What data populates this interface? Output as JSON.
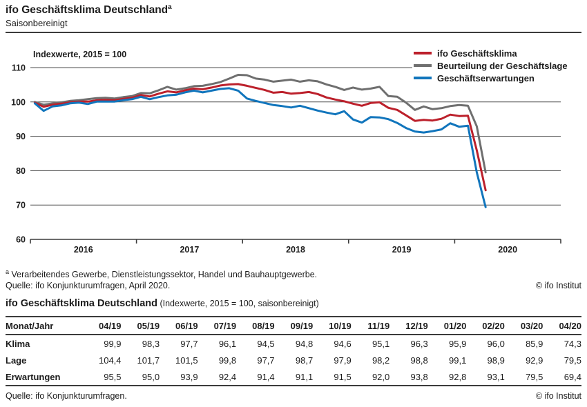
{
  "page": {
    "title": "ifo Geschäftsklima Deutschland",
    "title_superscript": "a",
    "subtitle": "Saisonbereinigt",
    "footnote_marker": "a",
    "footnote": " Verarbeitendes Gewerbe, Dienstleistungssektor, Handel und Bauhauptgewerbe.",
    "source_chart": "Quelle: ifo Konjunkturumfragen, April 2020.",
    "source_table": "Quelle: ifo Konjunkturumfragen.",
    "copyright": "© ifo Institut",
    "table_title": "ifo Geschäftsklima Deutschland",
    "table_subtitle": " (Indexwerte, 2015 = 100, saisonbereinigt)"
  },
  "chart_data": {
    "type": "line",
    "title": "ifo Geschäftsklima Deutschland, saisonbereinigt",
    "note": "Indexwerte, 2015 = 100",
    "x_monthly_from": "2016-01",
    "x_monthly_to": "2020-04",
    "x_tick_labels": [
      "2016",
      "2017",
      "2018",
      "2019",
      "2020"
    ],
    "yticks": [
      60,
      70,
      80,
      90,
      100,
      110
    ],
    "ylim": [
      60,
      112
    ],
    "grid": true,
    "legend_position": "top-right",
    "series": [
      {
        "key": "klima",
        "name": "ifo Geschäftsklima",
        "color": "#bc202b",
        "values": [
          99.8,
          98.6,
          99.2,
          99.5,
          99.9,
          100.1,
          100.1,
          100.5,
          100.6,
          100.5,
          100.9,
          101.2,
          102.0,
          101.6,
          102.4,
          103.1,
          102.8,
          103.4,
          103.9,
          103.7,
          104.2,
          104.8,
          105.1,
          105.2,
          104.7,
          104.1,
          103.5,
          102.7,
          102.9,
          102.4,
          102.6,
          102.9,
          102.3,
          101.3,
          100.7,
          100.2,
          99.5,
          98.9,
          99.7,
          99.9,
          98.3,
          97.7,
          96.1,
          94.5,
          94.8,
          94.6,
          95.1,
          96.3,
          95.9,
          96.0,
          85.9,
          74.3
        ]
      },
      {
        "key": "lage",
        "name": "Beurteilung der Geschäftslage",
        "color": "#6f6f6f",
        "values": [
          100.0,
          99.2,
          99.6,
          99.9,
          100.3,
          100.5,
          100.8,
          101.1,
          101.2,
          101.0,
          101.4,
          101.7,
          102.6,
          102.5,
          103.4,
          104.4,
          103.6,
          104.0,
          104.6,
          104.7,
          105.2,
          105.8,
          106.8,
          107.9,
          107.8,
          106.8,
          106.5,
          105.9,
          106.2,
          106.5,
          105.9,
          106.3,
          106.0,
          105.1,
          104.4,
          103.5,
          104.2,
          103.6,
          103.9,
          104.4,
          101.7,
          101.5,
          99.8,
          97.7,
          98.7,
          97.9,
          98.2,
          98.8,
          99.1,
          98.9,
          92.9,
          79.5
        ]
      },
      {
        "key": "erwartungen",
        "name": "Geschäftserwartungen",
        "color": "#1175bc",
        "values": [
          99.6,
          97.4,
          98.7,
          99.0,
          99.6,
          99.8,
          99.4,
          100.1,
          100.1,
          100.1,
          100.5,
          100.8,
          101.5,
          100.8,
          101.4,
          101.9,
          102.1,
          102.8,
          103.3,
          102.8,
          103.3,
          103.8,
          104.0,
          103.3,
          101.0,
          100.3,
          99.7,
          99.1,
          98.8,
          98.4,
          98.9,
          98.2,
          97.5,
          96.9,
          96.4,
          97.3,
          94.9,
          94.0,
          95.6,
          95.5,
          95.0,
          93.9,
          92.4,
          91.4,
          91.1,
          91.5,
          92.0,
          93.8,
          92.8,
          93.1,
          79.5,
          69.4
        ]
      }
    ]
  },
  "table": {
    "header": [
      "Monat/Jahr",
      "04/19",
      "05/19",
      "06/19",
      "07/19",
      "08/19",
      "09/19",
      "10/19",
      "11/19",
      "12/19",
      "01/20",
      "02/20",
      "03/20",
      "04/20"
    ],
    "rows": [
      {
        "label": "Klima",
        "values": [
          "99,9",
          "98,3",
          "97,7",
          "96,1",
          "94,5",
          "94,8",
          "94,6",
          "95,1",
          "96,3",
          "95,9",
          "96,0",
          "85,9",
          "74,3"
        ]
      },
      {
        "label": "Lage",
        "values": [
          "104,4",
          "101,7",
          "101,5",
          "99,8",
          "97,7",
          "98,7",
          "97,9",
          "98,2",
          "98,8",
          "99,1",
          "98,9",
          "92,9",
          "79,5"
        ]
      },
      {
        "label": "Erwartungen",
        "values": [
          "95,5",
          "95,0",
          "93,9",
          "92,4",
          "91,4",
          "91,1",
          "91,5",
          "92,0",
          "93,8",
          "92,8",
          "93,1",
          "79,5",
          "69,4"
        ]
      }
    ]
  },
  "colors": {
    "text": "#1c1c1c",
    "rule": "#3b3b3b",
    "gridline": "#4b4b4b",
    "klima_red": "#bc202b",
    "lage_gray": "#6f6f6f",
    "erwartungen_blue": "#1175bc"
  }
}
